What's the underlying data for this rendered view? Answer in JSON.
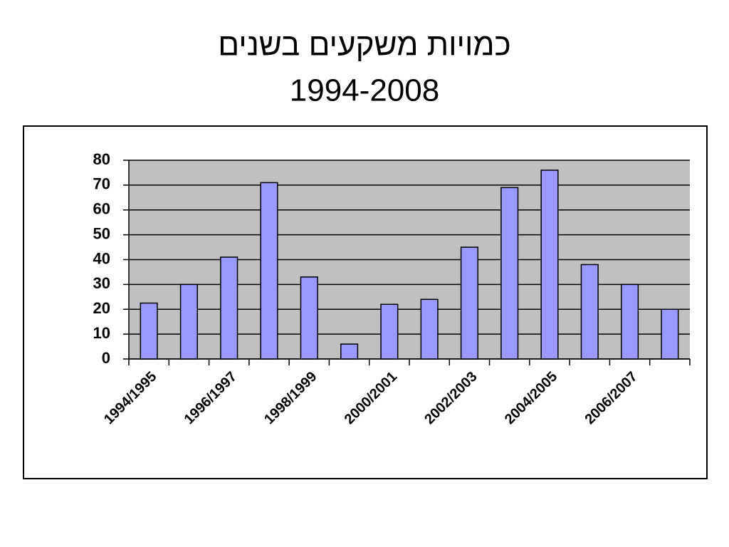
{
  "chart_data": {
    "type": "bar",
    "title": "כמויות משקעים בשנים",
    "subtitle": "1994-2008",
    "categories": [
      "1994/1995",
      null,
      "1996/1997",
      null,
      "1998/1999",
      null,
      "2000/2001",
      null,
      "2002/2003",
      null,
      "2004/2005",
      null,
      "2006/2007",
      null
    ],
    "values": [
      22.5,
      30,
      41,
      71,
      33,
      6,
      22,
      24,
      45,
      69,
      76,
      38,
      30,
      20
    ],
    "color": "#9999ff",
    "ylim": [
      0,
      80
    ],
    "yticks": [
      0,
      10,
      20,
      30,
      40,
      50,
      60,
      70,
      80
    ],
    "grid": true
  }
}
